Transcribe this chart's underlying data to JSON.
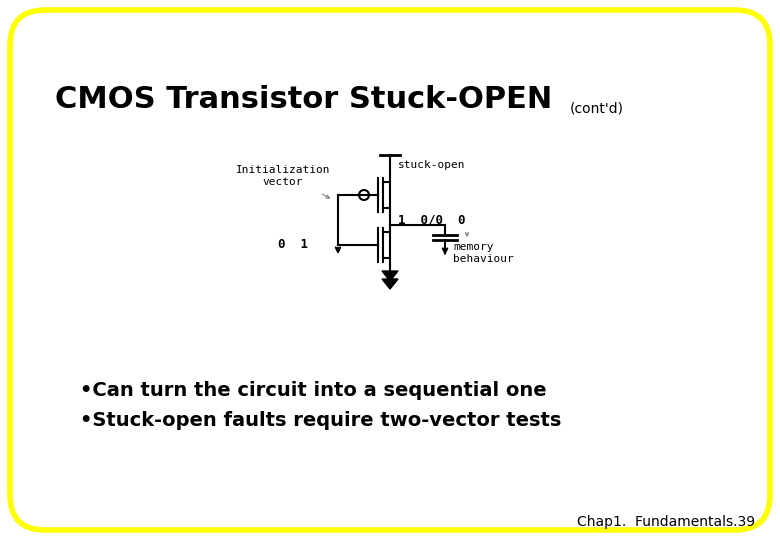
{
  "bg_color": "#ffffff",
  "border_color": "#ffff00",
  "title_main": "CMOS Transistor Stuck-OPEN",
  "title_sub": "(cont'd)",
  "title_fontsize": 22,
  "title_sub_fontsize": 10,
  "bullet1": "•Can turn the circuit into a sequential one",
  "bullet2": "•Stuck-open faults require two-vector tests",
  "bullet_fontsize": 14,
  "footer": "Chap1.  Fundamentals.39",
  "footer_fontsize": 10,
  "circuit_label_init": "Initialization\nvector",
  "circuit_label_stuck": "stuck-open",
  "circuit_label_values": "1  0/0  0",
  "circuit_label_memory": "memory\nbehaviour",
  "circuit_label_01": "0  1",
  "diagram_font": "monospace",
  "diagram_fontsize": 8
}
